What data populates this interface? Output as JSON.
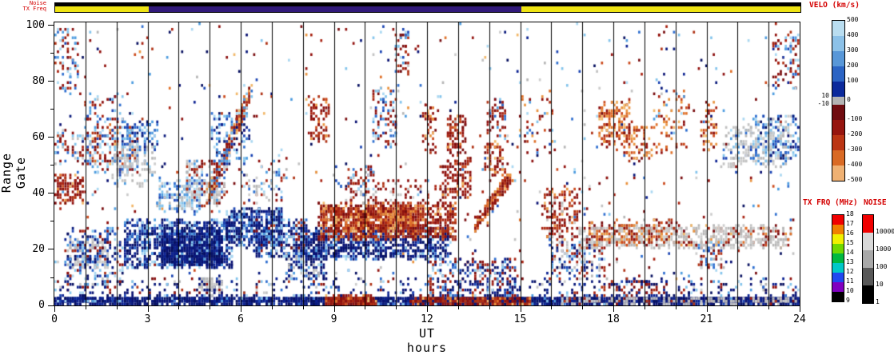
{
  "chart_data": {
    "type": "heatmap",
    "xlabel": "UT hours",
    "ylabel": "Range Gate",
    "xlim": [
      0,
      24
    ],
    "ylim": [
      0,
      101
    ],
    "x_ticks": [
      "0",
      "3",
      "6",
      "9",
      "12",
      "15",
      "18",
      "21",
      "24"
    ],
    "y_ticks": [
      "0",
      "20",
      "40",
      "60",
      "80",
      "100"
    ],
    "grid": "vertical-line-every-hour",
    "top_strip": {
      "noise_label": "Noise",
      "txfreq_label": "TX Freq",
      "noise_color": "#000000",
      "txfreq_segments": [
        {
          "from_hour": 0,
          "to_hour": 3,
          "color": "#efe413"
        },
        {
          "from_hour": 3,
          "to_hour": 15,
          "color": "#31197a"
        },
        {
          "from_hour": 15,
          "to_hour": 24,
          "color": "#efe413"
        }
      ]
    },
    "colorbars": {
      "velocity": {
        "title": "VELO (km/s)",
        "right_labels": [
          "500",
          "400",
          "300",
          "200",
          "100",
          "0",
          "-100",
          "-200",
          "-300",
          "-400",
          "-500"
        ],
        "left_labels": [
          "10",
          "-10"
        ],
        "colors": [
          "#b9ddf0",
          "#8cc1e8",
          "#5897d8",
          "#2b64c4",
          "#0c2a9c",
          "#b4b4b4",
          "#700c10",
          "#96150f",
          "#bb3514",
          "#d96a24",
          "#efb173"
        ]
      },
      "tx_freq": {
        "title": "TX FRQ (MHz)",
        "labels": [
          "18",
          "17",
          "16",
          "15",
          "14",
          "13",
          "12",
          "11",
          "10",
          "9"
        ],
        "colors": [
          "#f00000",
          "#f08000",
          "#f0f000",
          "#70d800",
          "#00b840",
          "#00c8c8",
          "#2048f0",
          "#8000c0",
          "#000000"
        ]
      },
      "noise": {
        "title": "NOISE",
        "labels": [
          "10000",
          "1000",
          "100",
          "10",
          "1"
        ],
        "colors": [
          "#f00000",
          "#d8d8d8",
          "#a8a8a8",
          "#585858",
          "#000000"
        ]
      }
    },
    "palettes": {
      "navy": [
        "#0a1a7c",
        "#091173",
        "#0c2292",
        "#071060"
      ],
      "blue": [
        "#1d46b4",
        "#2f6fd0",
        "#4f9de0",
        "#83c4ec",
        "#aad8f2"
      ],
      "red": [
        "#790d0f",
        "#93130f",
        "#a92312",
        "#8c0f0e",
        "#b03316"
      ],
      "orange": [
        "#cc4a1c",
        "#e0712a",
        "#ea9440",
        "#f2b86a"
      ],
      "gray": [
        "#c3c3c3",
        "#cdcdcd",
        "#b7b7b7"
      ]
    },
    "clusters": [
      {
        "x": [
          0,
          24
        ],
        "y": [
          0,
          2.6
        ],
        "n": 2400,
        "pal": [
          "navy@8",
          "blue@1"
        ]
      },
      {
        "x": [
          8.7,
          10.3
        ],
        "y": [
          0,
          2.6
        ],
        "n": 280,
        "pal": [
          "red@3",
          "orange@1"
        ]
      },
      {
        "x": [
          11.4,
          15.3
        ],
        "y": [
          0,
          2.6
        ],
        "n": 520,
        "pal": [
          "red@5",
          "orange@2",
          "navy@2"
        ]
      },
      {
        "x": [
          16.2,
          23.9
        ],
        "y": [
          0,
          2.2
        ],
        "n": 400,
        "pal": [
          "gray@5",
          "navy@3",
          "red@1"
        ]
      },
      {
        "x": [
          0,
          24
        ],
        "y": [
          3,
          9
        ],
        "n": 420,
        "pal": [
          "navy@4",
          "blue@2",
          "red@2",
          "gray@1"
        ]
      },
      {
        "x": [
          0,
          24
        ],
        "y": [
          9,
          100
        ],
        "n": 650,
        "pal": [
          "blue@3",
          "red@3",
          "navy@2",
          "orange@1",
          "gray@1"
        ]
      },
      {
        "x": [
          0,
          0.9
        ],
        "y": [
          36,
          46
        ],
        "n": 110,
        "pal": [
          "red@4",
          "orange@1"
        ]
      },
      {
        "x": [
          0,
          1.3
        ],
        "y": [
          50,
          62
        ],
        "n": 90,
        "pal": [
          "blue@2",
          "red@2",
          "gray@1"
        ]
      },
      {
        "x": [
          0,
          0.7
        ],
        "y": [
          76,
          99
        ],
        "n": 70,
        "pal": [
          "red@2",
          "blue@2"
        ]
      },
      {
        "x": [
          0.4,
          1.7
        ],
        "y": [
          13,
          23
        ],
        "n": 160,
        "pal": [
          "gray@5",
          "blue@2"
        ]
      },
      {
        "x": [
          0.3,
          2.3
        ],
        "y": [
          7,
          27
        ],
        "n": 200,
        "pal": [
          "navy@3",
          "blue@3",
          "red@1"
        ]
      },
      {
        "x": [
          1.2,
          2.7
        ],
        "y": [
          47,
          63
        ],
        "n": 170,
        "pal": [
          "blue@3",
          "red@2",
          "orange@1"
        ]
      },
      {
        "x": [
          1.8,
          3.2
        ],
        "y": [
          42,
          57
        ],
        "n": 130,
        "pal": [
          "gray@4",
          "blue@1"
        ]
      },
      {
        "x": [
          2.1,
          3.3
        ],
        "y": [
          55,
          65
        ],
        "n": 90,
        "pal": [
          "blue@3",
          "navy@1"
        ]
      },
      {
        "x": [
          2.2,
          5.7
        ],
        "y": [
          13,
          30
        ],
        "n": 800,
        "pal": [
          "navy@5",
          "blue@3"
        ]
      },
      {
        "x": [
          3.4,
          5.4
        ],
        "y": [
          14,
          27
        ],
        "n": 700,
        "pal": [
          "navy@7",
          "blue@1"
        ]
      },
      {
        "x": [
          3.3,
          4.7
        ],
        "y": [
          33,
          45
        ],
        "n": 150,
        "pal": [
          "blue@3",
          "gray@2"
        ]
      },
      {
        "x": [
          4.2,
          5.5
        ],
        "y": [
          35,
          51
        ],
        "n": 190,
        "pal": [
          "gray@3",
          "blue@2",
          "red@2"
        ]
      },
      {
        "shape": "diag",
        "x": [
          4.9,
          6.3
        ],
        "y": [
          38,
          76
        ],
        "n": 240,
        "jitter": 6,
        "pal": [
          "red@4",
          "orange@3",
          "blue@2"
        ]
      },
      {
        "x": [
          5.0,
          6.3
        ],
        "y": [
          50,
          68
        ],
        "n": 110,
        "pal": [
          "blue@3",
          "navy@1"
        ]
      },
      {
        "x": [
          4.6,
          5.4
        ],
        "y": [
          3,
          10
        ],
        "n": 70,
        "pal": [
          "gray@3",
          "navy@1"
        ]
      },
      {
        "x": [
          5.5,
          7.3
        ],
        "y": [
          21,
          34
        ],
        "n": 480,
        "pal": [
          "navy@5",
          "blue@3"
        ]
      },
      {
        "x": [
          6.4,
          8.1
        ],
        "y": [
          17,
          30
        ],
        "n": 280,
        "pal": [
          "navy@4",
          "blue@3",
          "red@1"
        ]
      },
      {
        "x": [
          6.0,
          7.5
        ],
        "y": [
          36,
          48
        ],
        "n": 60,
        "pal": [
          "gray@2",
          "blue@2",
          "red@1"
        ]
      },
      {
        "x": [
          7.4,
          8.7
        ],
        "y": [
          9,
          20
        ],
        "n": 150,
        "pal": [
          "navy@3",
          "blue@2",
          "gray@1"
        ]
      },
      {
        "x": [
          8.1,
          8.8
        ],
        "y": [
          58,
          74
        ],
        "n": 80,
        "pal": [
          "red@4",
          "orange@1"
        ]
      },
      {
        "x": [
          7.9,
          12.7
        ],
        "y": [
          16,
          27
        ],
        "n": 850,
        "pal": [
          "navy@6",
          "blue@2"
        ]
      },
      {
        "x": [
          8.5,
          12.9
        ],
        "y": [
          23,
          36
        ],
        "n": 1000,
        "pal": [
          "red@6",
          "orange@2"
        ]
      },
      {
        "x": [
          9.0,
          11.6
        ],
        "y": [
          26,
          34
        ],
        "n": 350,
        "pal": [
          "red@3",
          "orange@3"
        ]
      },
      {
        "x": [
          9.3,
          12.6
        ],
        "y": [
          36,
          44
        ],
        "n": 90,
        "pal": [
          "red@3",
          "gray@1"
        ]
      },
      {
        "x": [
          9.4,
          10.3
        ],
        "y": [
          39,
          49
        ],
        "n": 60,
        "pal": [
          "red@2",
          "blue@2",
          "gray@1"
        ]
      },
      {
        "x": [
          10.2,
          11.0
        ],
        "y": [
          56,
          77
        ],
        "n": 80,
        "pal": [
          "red@2",
          "blue@2"
        ]
      },
      {
        "x": [
          10.9,
          11.4
        ],
        "y": [
          82,
          97
        ],
        "n": 45,
        "pal": [
          "red@3",
          "blue@1"
        ]
      },
      {
        "x": [
          11.8,
          12.3
        ],
        "y": [
          54,
          71
        ],
        "n": 50,
        "pal": [
          "red@3",
          "orange@1"
        ]
      },
      {
        "x": [
          12.4,
          13.4
        ],
        "y": [
          37,
          52
        ],
        "n": 120,
        "pal": [
          "red@4",
          "orange@1"
        ]
      },
      {
        "x": [
          12.6,
          13.2
        ],
        "y": [
          53,
          67
        ],
        "n": 85,
        "pal": [
          "red@4",
          "orange@1"
        ]
      },
      {
        "x": [
          12.0,
          14.9
        ],
        "y": [
          3,
          16
        ],
        "n": 240,
        "pal": [
          "navy@3",
          "blue@2",
          "red@2"
        ]
      },
      {
        "shape": "diag",
        "x": [
          13.5,
          14.7
        ],
        "y": [
          28,
          46
        ],
        "n": 160,
        "jitter": 5,
        "pal": [
          "red@5",
          "orange@2"
        ]
      },
      {
        "x": [
          13.8,
          14.6
        ],
        "y": [
          46,
          58
        ],
        "n": 70,
        "pal": [
          "red@4",
          "orange@1"
        ]
      },
      {
        "x": [
          13.9,
          14.5
        ],
        "y": [
          60,
          73
        ],
        "n": 55,
        "pal": [
          "red@3",
          "blue@1"
        ]
      },
      {
        "x": [
          14.9,
          16.1
        ],
        "y": [
          52,
          76
        ],
        "n": 40,
        "pal": [
          "red@2",
          "blue@1",
          "orange@1"
        ]
      },
      {
        "x": [
          15.7,
          16.9
        ],
        "y": [
          23,
          41
        ],
        "n": 150,
        "pal": [
          "red@4",
          "orange@1",
          "gray@1"
        ]
      },
      {
        "x": [
          15.9,
          17.7
        ],
        "y": [
          9,
          24
        ],
        "n": 180,
        "pal": [
          "gray@2",
          "red@2",
          "blue@2",
          "navy@1"
        ]
      },
      {
        "x": [
          16.9,
          23.7
        ],
        "y": [
          20,
          28
        ],
        "n": 650,
        "pal": [
          "gray@7",
          "red@1",
          "orange@1"
        ]
      },
      {
        "x": [
          17.1,
          20.1
        ],
        "y": [
          21,
          30
        ],
        "n": 180,
        "pal": [
          "red@2",
          "orange@2",
          "gray@1"
        ]
      },
      {
        "x": [
          17.5,
          18.5
        ],
        "y": [
          57,
          72
        ],
        "n": 160,
        "pal": [
          "orange@5",
          "red@3"
        ]
      },
      {
        "x": [
          18.3,
          19.3
        ],
        "y": [
          51,
          64
        ],
        "n": 70,
        "pal": [
          "orange@3",
          "red@2"
        ]
      },
      {
        "x": [
          19.3,
          20.4
        ],
        "y": [
          54,
          76
        ],
        "n": 65,
        "pal": [
          "orange@3",
          "red@2",
          "blue@1"
        ]
      },
      {
        "x": [
          17.8,
          19.5
        ],
        "y": [
          3,
          9
        ],
        "n": 60,
        "pal": [
          "red@2",
          "navy@2"
        ]
      },
      {
        "x": [
          20.7,
          21.5
        ],
        "y": [
          11,
          22
        ],
        "n": 55,
        "pal": [
          "blue@2",
          "red@2",
          "gray@1"
        ]
      },
      {
        "x": [
          20.8,
          21.3
        ],
        "y": [
          55,
          72
        ],
        "n": 45,
        "pal": [
          "orange@2",
          "red@2"
        ]
      },
      {
        "x": [
          21.5,
          23.7
        ],
        "y": [
          49,
          64
        ],
        "n": 240,
        "pal": [
          "gray@6",
          "blue@2"
        ]
      },
      {
        "x": [
          22.5,
          23.95
        ],
        "y": [
          52,
          68
        ],
        "n": 140,
        "pal": [
          "blue@4",
          "navy@2",
          "gray@1"
        ]
      },
      {
        "x": [
          23.1,
          23.95
        ],
        "y": [
          76,
          97
        ],
        "n": 85,
        "pal": [
          "red@3",
          "blue@2"
        ]
      },
      {
        "x": [
          0.9,
          2.2
        ],
        "y": [
          63,
          75
        ],
        "n": 45,
        "pal": [
          "red@2",
          "blue@2"
        ]
      }
    ]
  }
}
